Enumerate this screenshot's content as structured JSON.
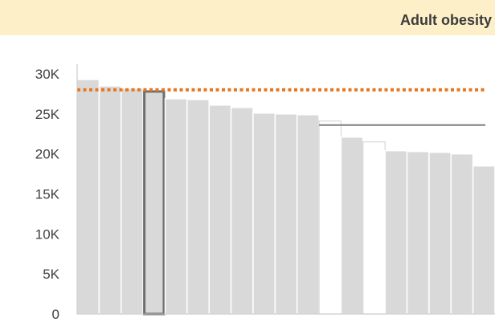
{
  "chart_data": {
    "type": "bar",
    "title": "Adult obesity",
    "xlabel": "",
    "ylabel": "",
    "ylim": [
      0,
      30000
    ],
    "yticks": [
      {
        "value": 0,
        "label": "0"
      },
      {
        "value": 5000,
        "label": "5K"
      },
      {
        "value": 10000,
        "label": "10K"
      },
      {
        "value": 15000,
        "label": "15K"
      },
      {
        "value": 20000,
        "label": "20K"
      },
      {
        "value": 25000,
        "label": "25K"
      },
      {
        "value": 30000,
        "label": "30K"
      }
    ],
    "grid": false,
    "values": [
      29300,
      28500,
      28200,
      27800,
      26900,
      26800,
      26100,
      25800,
      25100,
      25000,
      24900,
      24100,
      22100,
      21500,
      20400,
      20300,
      20200,
      20000,
      18500
    ],
    "bar_styles": [
      "normal",
      "normal",
      "normal",
      "highlight",
      "normal",
      "normal",
      "normal",
      "normal",
      "normal",
      "normal",
      "normal",
      "white",
      "normal",
      "white",
      "normal",
      "normal",
      "normal",
      "normal",
      "normal"
    ],
    "reference_lines": [
      {
        "style": "dotted",
        "color": "#e87722",
        "value": 28000,
        "from_index": 0,
        "to_index": 18
      },
      {
        "style": "solid",
        "color": "#7f7f7f",
        "value": 23600,
        "from_index": 11,
        "to_index": 18
      }
    ],
    "colors": {
      "bar_fill": "#d9d9d9",
      "bar_stroke": "#ffffff",
      "highlight_stroke": "#6e6e6e",
      "white_stroke": "#d0d0d0",
      "axis": "#bfbfbf",
      "header": "#fdf0c9"
    }
  }
}
